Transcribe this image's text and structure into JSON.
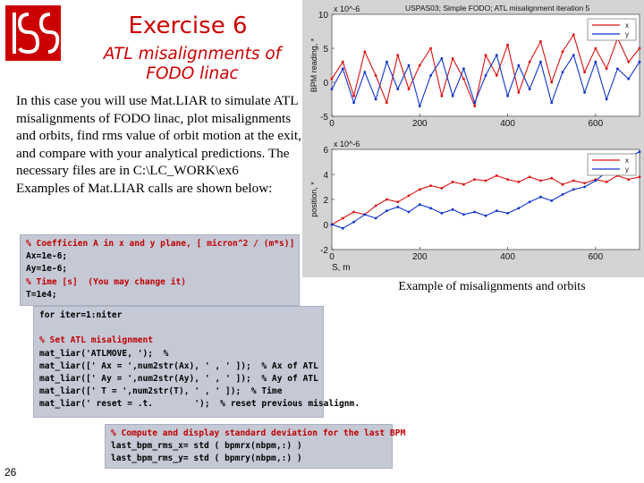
{
  "title": "Exercise 6",
  "subtitle_line1": "ATL misalignments of",
  "subtitle_line2": "FODO linac",
  "body_text": "In this case you will use Mat.LIAR to simulate ATL misalignments of FODO linac, plot misalignments and orbits, find rms value of orbit motion at the exit, and compare with your analytical predictions. The necessary files are in C:\\LC_WORK\\ex6\nExamples of Mat.LIAR calls are shown below:",
  "code_block_1": [
    "% Coefficien A in x and y plane, [ micron^2 / (m*s)]",
    "Ax=1e-6;",
    "Ay=1e-6;",
    "% Time [s]  (You may change it)",
    "T=1e4;"
  ],
  "code_block_2": [
    "for iter=1:niter",
    "",
    "% Set ATL misalignment",
    "mat_liar('ATLMOVE, ');  %",
    "mat_liar([' Ax = ',num2str(Ax), ' , ' ]);  % Ax of ATL",
    "mat_liar([' Ay = ',num2str(Ay), ' , ' ]);  % Ay of ATL",
    "mat_liar([' T = ',num2str(T), ' , ' ]);  % Time",
    "mat_liar(' reset = .t.        ');  % reset previous misalignm."
  ],
  "code_block_3": [
    "% Compute and display standard deviation for the last BPM",
    "last_bpm_rms_x= std ( bpmrx(nbpm,:) )",
    "last_bpm_rms_y= std ( bpmry(nbpm,:) )"
  ],
  "caption": "Example of misalignments and orbits",
  "page_number": "26",
  "colors": {
    "accent": "#cc0000",
    "series_x": "#dd1111",
    "series_y": "#1133cc",
    "code_bg": "#c5c9d6",
    "panel_bg": "#d4d4d4"
  },
  "chart_data": [
    {
      "type": "line",
      "title": "USPAS03; Simple FODO; ATL misalignment iteration 5",
      "ylabel": "BPM reading, *",
      "y_exponent": "x 10^-6",
      "xlim": [
        0,
        700
      ],
      "ylim": [
        -5,
        10
      ],
      "xticks": [
        0,
        200,
        400,
        600
      ],
      "yticks": [
        -5,
        0,
        5,
        10
      ],
      "series": [
        {
          "name": "x",
          "color": "#dd1111",
          "x": [
            0,
            25,
            50,
            75,
            100,
            125,
            150,
            175,
            200,
            225,
            250,
            275,
            300,
            325,
            350,
            375,
            400,
            425,
            450,
            475,
            500,
            525,
            550,
            575,
            600,
            625,
            650,
            675,
            700
          ],
          "y": [
            0.5,
            3,
            -2,
            4.5,
            1,
            -3,
            4,
            -1,
            2.5,
            5,
            -2,
            3.5,
            0.5,
            -3.5,
            4,
            1,
            5.5,
            -1.5,
            3,
            6,
            0,
            4.5,
            7,
            1.5,
            5,
            2,
            6.5,
            3,
            5
          ]
        },
        {
          "name": "y",
          "color": "#1133cc",
          "x": [
            0,
            25,
            50,
            75,
            100,
            125,
            150,
            175,
            200,
            225,
            250,
            275,
            300,
            325,
            350,
            375,
            400,
            425,
            450,
            475,
            500,
            525,
            550,
            575,
            600,
            625,
            650,
            675,
            700
          ],
          "y": [
            -1,
            2,
            -3,
            1.5,
            -2.5,
            3,
            -1,
            2.5,
            -3.5,
            1,
            3.5,
            -2,
            2,
            -3,
            1,
            4,
            -2,
            2.5,
            -1,
            3,
            -3,
            1.5,
            4,
            -1.5,
            3,
            -2.5,
            2,
            0.5,
            3
          ]
        }
      ]
    },
    {
      "type": "line",
      "ylabel": "position, *",
      "xlabel": "S, m",
      "y_exponent": "x 10^-6",
      "xlim": [
        0,
        700
      ],
      "ylim": [
        -2,
        6
      ],
      "xticks": [
        0,
        200,
        400,
        600
      ],
      "yticks": [
        -2,
        0,
        2,
        4,
        6
      ],
      "series": [
        {
          "name": "x",
          "color": "#dd1111",
          "x": [
            0,
            25,
            50,
            75,
            100,
            125,
            150,
            175,
            200,
            225,
            250,
            275,
            300,
            325,
            350,
            375,
            400,
            425,
            450,
            475,
            500,
            525,
            550,
            575,
            600,
            625,
            650,
            675,
            700
          ],
          "y": [
            0,
            0.5,
            1,
            0.8,
            1.5,
            2,
            1.8,
            2.3,
            2.8,
            3.1,
            2.9,
            3.4,
            3.2,
            3.6,
            3.5,
            3.9,
            3.6,
            3.4,
            3.8,
            3.5,
            3.7,
            3.2,
            3.5,
            3.3,
            3.6,
            3.4,
            3.9,
            3.6,
            3.8
          ]
        },
        {
          "name": "y",
          "color": "#1133cc",
          "x": [
            0,
            25,
            50,
            75,
            100,
            125,
            150,
            175,
            200,
            225,
            250,
            275,
            300,
            325,
            350,
            375,
            400,
            425,
            450,
            475,
            500,
            525,
            550,
            575,
            600,
            625,
            650,
            675,
            700
          ],
          "y": [
            0,
            -0.3,
            0.2,
            0.8,
            0.5,
            1.1,
            1.4,
            1.0,
            1.6,
            1.3,
            0.9,
            1.2,
            0.8,
            1.0,
            0.7,
            1.1,
            0.9,
            1.3,
            1.8,
            2.2,
            1.9,
            2.4,
            2.8,
            3.0,
            3.5,
            4.2,
            4.8,
            5.4,
            5.8
          ]
        }
      ]
    }
  ]
}
